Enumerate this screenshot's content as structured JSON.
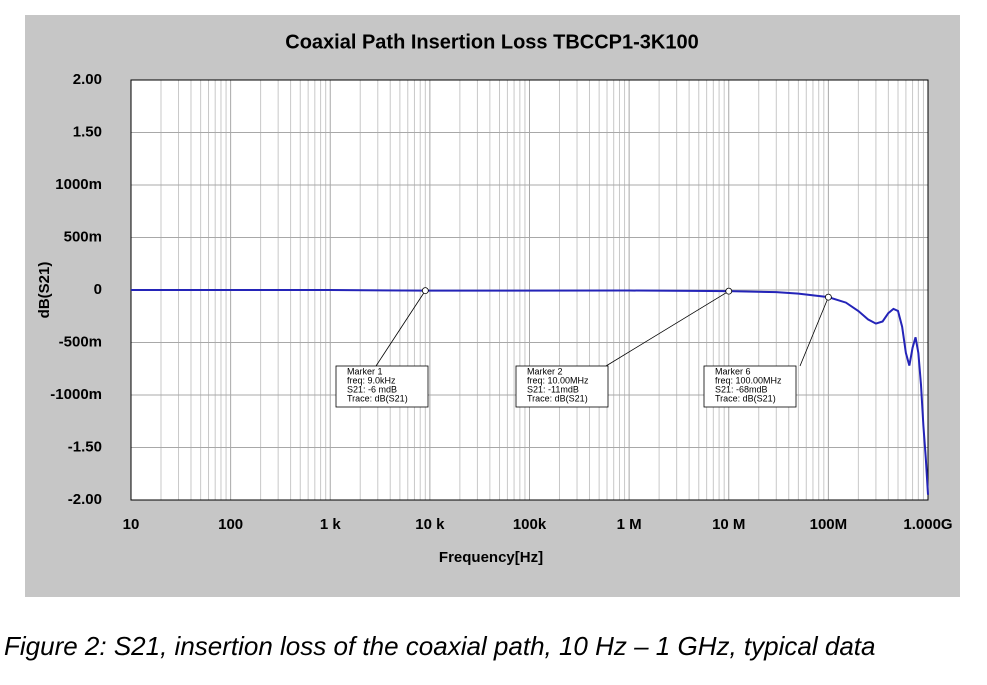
{
  "chart_data": {
    "type": "line",
    "title": "Coaxial Path Insertion Loss TBCCP1-3K100",
    "x_label": "Frequency[Hz]",
    "y_label": "dB(S21)",
    "caption": "Figure 2: S21, insertion loss of the coaxial path, 10 Hz – 1 GHz, typical data",
    "x_scale": "log",
    "grid": true,
    "minor_grid": true,
    "xlim": [
      10,
      1000000000
    ],
    "ylim": [
      -2,
      2
    ],
    "xticks": [
      10,
      100,
      {
        "value": 1000,
        "label": "1 k"
      },
      {
        "value": 10000,
        "label": "10 k"
      },
      {
        "value": 100000,
        "label": "100k"
      },
      {
        "value": 1000000,
        "label": "1 M"
      },
      {
        "value": 10000000,
        "label": "10 M"
      },
      {
        "value": 100000000,
        "label": "100M"
      },
      {
        "value": 1000000000,
        "label": "1.000G"
      }
    ],
    "yticks": [
      {
        "value": 2,
        "label": "2.00"
      },
      {
        "value": 1.5,
        "label": "1.50"
      },
      {
        "value": 1,
        "label": "1000m"
      },
      {
        "value": 0.5,
        "label": "500m"
      },
      0,
      {
        "value": -0.5,
        "label": "-500m"
      },
      {
        "value": -1,
        "label": "-1000m"
      },
      {
        "value": -1.5,
        "label": "-1.50"
      },
      {
        "value": -2,
        "label": "-2.00"
      }
    ],
    "series": [
      {
        "name": "dB(S21)",
        "color": "#2424b8",
        "x": [
          10,
          1000,
          9000,
          1000000,
          10000000,
          30000000,
          50000000,
          100000000,
          150000000,
          200000000,
          250000000,
          300000000,
          350000000,
          400000000,
          450000000,
          500000000,
          550000000,
          600000000,
          650000000,
          700000000,
          750000000,
          800000000,
          850000000,
          900000000,
          950000000,
          1000000000
        ],
        "values": [
          0,
          0,
          -0.006,
          -0.005,
          -0.011,
          -0.02,
          -0.035,
          -0.068,
          -0.12,
          -0.2,
          -0.28,
          -0.32,
          -0.3,
          -0.22,
          -0.18,
          -0.2,
          -0.35,
          -0.6,
          -0.72,
          -0.55,
          -0.45,
          -0.6,
          -0.9,
          -1.3,
          -1.6,
          -1.95
        ]
      }
    ],
    "markers": [
      {
        "x": 9000,
        "y": -0.006,
        "lines": [
          "Marker 1",
          "freq: 9.0kHz",
          "S21: -6 mdB",
          "Trace: dB(S21)"
        ]
      },
      {
        "x": 10000000,
        "y": -0.011,
        "lines": [
          "Marker 2",
          "freq: 10.00MHz",
          "S21: -11mdB",
          "Trace: dB(S21)"
        ]
      },
      {
        "x": 100000000,
        "y": -0.068,
        "lines": [
          "Marker 6",
          "freq: 100.00MHz",
          "S21: -68mdB",
          "Trace: dB(S21)"
        ]
      }
    ]
  }
}
